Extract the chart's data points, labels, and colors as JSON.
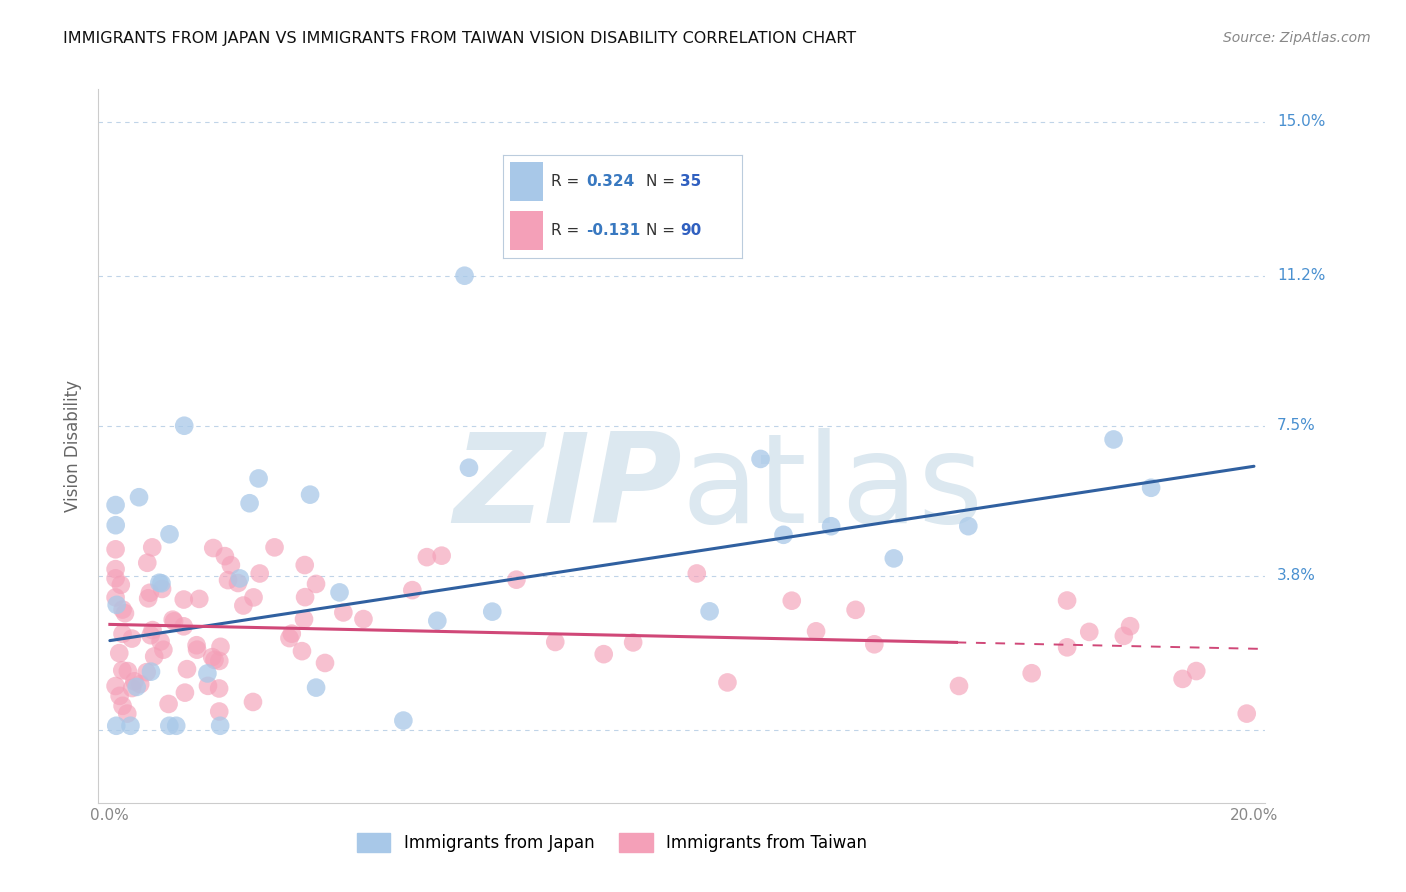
{
  "title": "IMMIGRANTS FROM JAPAN VS IMMIGRANTS FROM TAIWAN VISION DISABILITY CORRELATION CHART",
  "source": "Source: ZipAtlas.com",
  "ylabel": "Vision Disability",
  "xlim": [
    -0.002,
    0.202
  ],
  "ylim": [
    -0.018,
    0.158
  ],
  "xticks": [
    0.0,
    0.05,
    0.1,
    0.15,
    0.2
  ],
  "xtick_labels": [
    "0.0%",
    "",
    "",
    "",
    "20.0%"
  ],
  "yticks": [
    0.0,
    0.038,
    0.075,
    0.112,
    0.15
  ],
  "ytick_labels": [
    "",
    "3.8%",
    "7.5%",
    "11.2%",
    "15.0%"
  ],
  "japan_R": 0.324,
  "japan_N": 35,
  "taiwan_R": -0.131,
  "taiwan_N": 90,
  "japan_color": "#a8c8e8",
  "taiwan_color": "#f4a0b8",
  "japan_color_dark": "#5090c0",
  "taiwan_color_dark": "#d04878",
  "japan_line_color": "#3060a0",
  "taiwan_line_color": "#d04878",
  "background_color": "#ffffff",
  "grid_color": "#c0d4e8",
  "watermark_color": "#dce8f0",
  "legend_box_color": "#e8f0f8",
  "legend_R_color": "#3878c0",
  "legend_N_color": "#3060c0"
}
